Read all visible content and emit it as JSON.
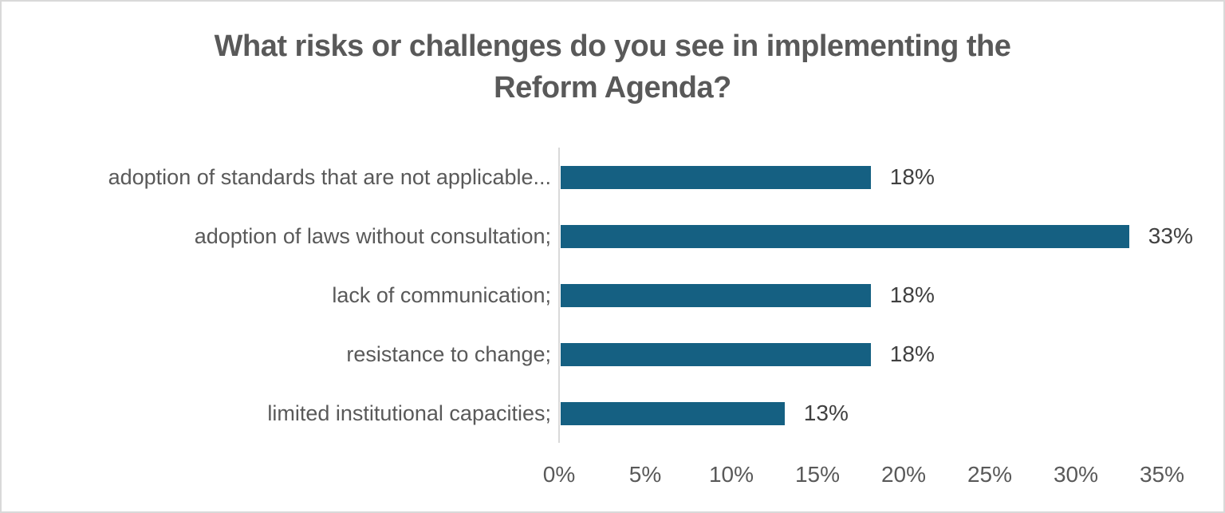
{
  "frame": {
    "background": "#ffffff",
    "border_color": "#d9d9d9"
  },
  "chart_data": {
    "type": "bar",
    "orientation": "horizontal",
    "title": "What risks or challenges do you see in implementing the Reform Agenda?",
    "title_line1": "What risks or challenges do you see in implementing the",
    "title_line2": "Reform Agenda?",
    "categories": [
      "adoption of standards that are not applicable...",
      "adoption of laws without consultation;",
      "lack of communication;",
      "resistance to change;",
      "limited institutional capacities;"
    ],
    "values": [
      18,
      33,
      18,
      18,
      13
    ],
    "value_labels": [
      "18%",
      "33%",
      "18%",
      "18%",
      "13%"
    ],
    "x_ticks": [
      "0%",
      "5%",
      "10%",
      "15%",
      "20%",
      "25%",
      "30%",
      "35%"
    ],
    "xlim": [
      0,
      35
    ],
    "xlabel": "",
    "ylabel": "",
    "grid": false,
    "legend": false,
    "colors": {
      "bar": "#156082",
      "title": "#595959",
      "axis_labels": "#595959",
      "value_labels": "#404040",
      "axis_line": "#d9d9d9",
      "frame_border": "#d9d9d9"
    }
  }
}
